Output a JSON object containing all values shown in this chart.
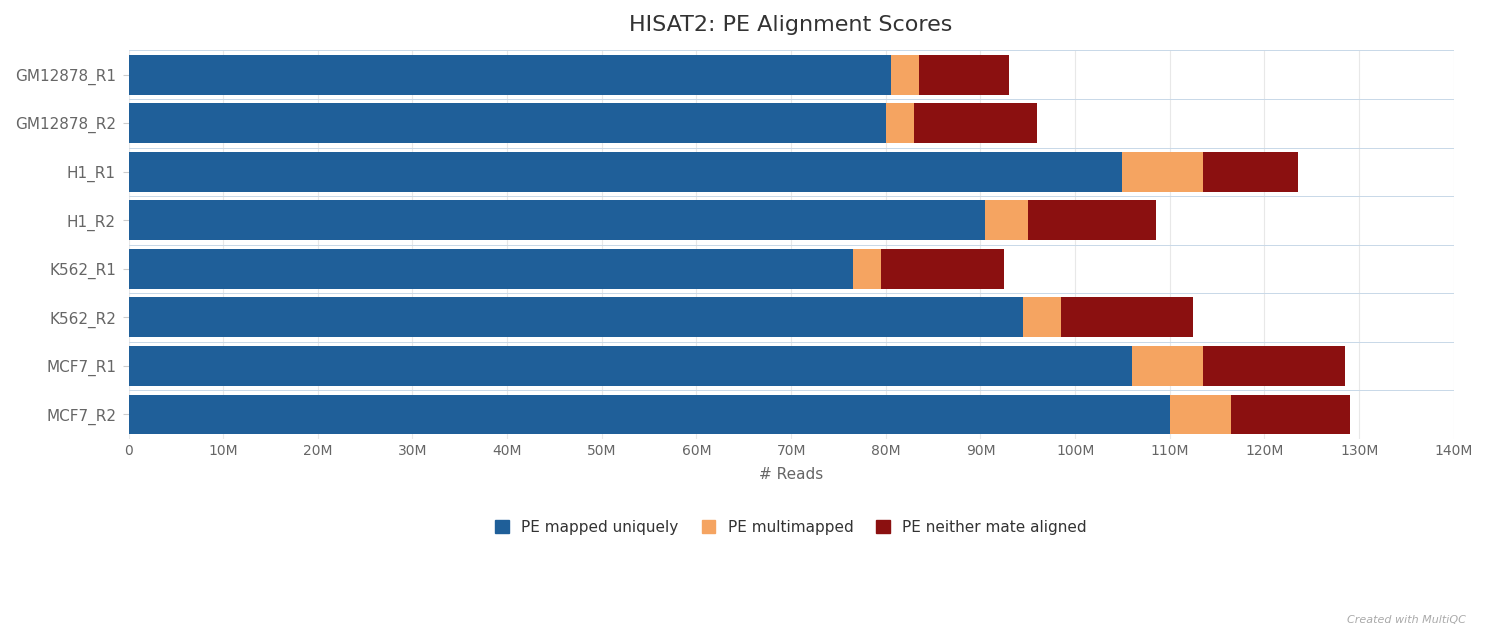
{
  "title": "HISAT2: PE Alignment Scores",
  "xlabel": "# Reads",
  "categories": [
    "GM12878_R1",
    "GM12878_R2",
    "H1_R1",
    "H1_R2",
    "K562_R1",
    "K562_R2",
    "MCF7_R1",
    "MCF7_R2"
  ],
  "pe_mapped_uniquely": [
    80500000,
    80000000,
    105000000,
    90500000,
    76500000,
    94500000,
    106000000,
    110000000
  ],
  "pe_multimapped": [
    3000000,
    3000000,
    8500000,
    4500000,
    3000000,
    4000000,
    7500000,
    6500000
  ],
  "pe_neither": [
    9500000,
    13000000,
    10000000,
    13500000,
    13000000,
    14000000,
    15000000,
    12500000
  ],
  "color_blue": "#1f5f99",
  "color_orange": "#f5a461",
  "color_red": "#8b1010",
  "xlim": [
    0,
    140000000
  ],
  "xticks": [
    0,
    10000000,
    20000000,
    30000000,
    40000000,
    50000000,
    60000000,
    70000000,
    80000000,
    90000000,
    100000000,
    110000000,
    120000000,
    130000000,
    140000000
  ],
  "xtick_labels": [
    "0",
    "10M",
    "20M",
    "30M",
    "40M",
    "50M",
    "60M",
    "70M",
    "80M",
    "90M",
    "100M",
    "110M",
    "120M",
    "130M",
    "140M"
  ],
  "legend_labels": [
    "PE mapped uniquely",
    "PE multimapped",
    "PE neither mate aligned"
  ],
  "watermark": "Created with MultiQC",
  "title_fontsize": 16,
  "label_fontsize": 11,
  "tick_fontsize": 10,
  "bar_height": 0.82,
  "background_color": "#ffffff",
  "grid_color": "#e8e8e8",
  "yticklabel_color": "#666666",
  "xticklabel_color": "#666666",
  "title_color": "#333333",
  "legend_label_color": "#333333"
}
